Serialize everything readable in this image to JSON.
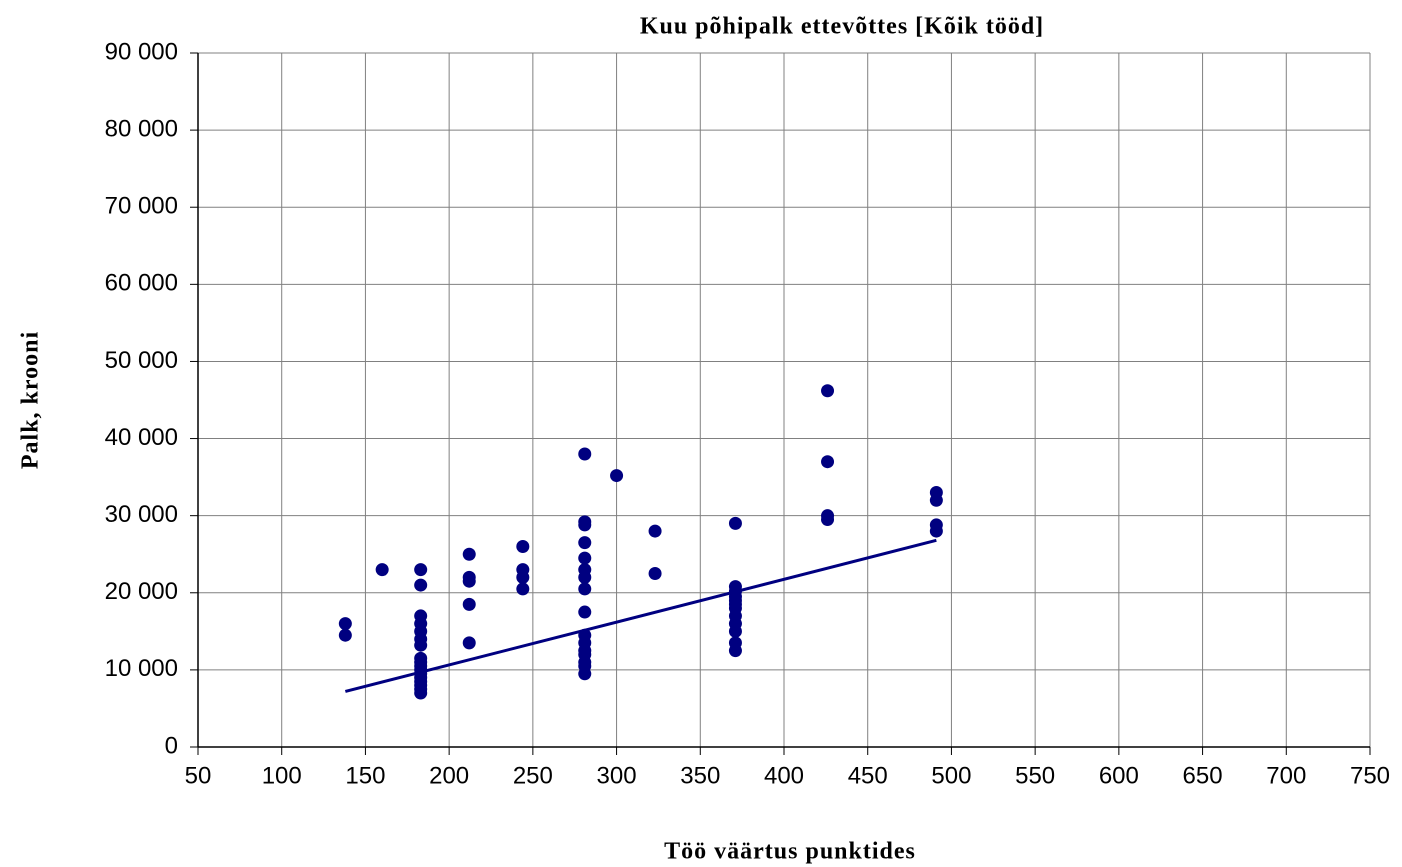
{
  "chart_data": {
    "type": "scatter",
    "title": "Kuu põhipalk ettevõttes [Kõik tööd]",
    "x_label": "Töö väärtus punktides",
    "y_label": "Palk, krooni",
    "color": "#000080",
    "x": [
      138,
      138,
      160,
      183,
      183,
      183,
      183,
      183,
      183,
      183,
      183,
      183,
      183,
      183,
      183,
      183,
      183,
      183,
      183,
      183,
      212,
      212,
      212,
      212,
      212,
      244,
      244,
      244,
      244,
      281,
      281,
      281,
      281,
      281,
      281,
      281,
      281,
      281,
      281,
      281,
      281,
      281,
      281,
      281,
      281,
      300,
      323,
      323,
      371,
      371,
      371,
      371,
      371,
      371,
      371,
      371,
      371,
      371,
      371,
      371,
      426,
      426,
      426,
      426,
      491,
      491,
      491,
      491
    ],
    "values": [
      16000,
      14500,
      23000,
      23000,
      21000,
      17000,
      16000,
      15000,
      14000,
      13200,
      11500,
      11000,
      10500,
      10000,
      9500,
      9000,
      8500,
      8000,
      7500,
      7000,
      25000,
      22000,
      21500,
      18500,
      13500,
      26000,
      23000,
      22000,
      20500,
      38000,
      29200,
      28800,
      26500,
      24500,
      23000,
      22000,
      20500,
      17500,
      14500,
      13500,
      12500,
      12000,
      11000,
      10500,
      9500,
      35200,
      28000,
      22500,
      29000,
      20800,
      20200,
      19500,
      19000,
      18500,
      18000,
      17000,
      16000,
      15000,
      13500,
      12500,
      46200,
      37000,
      30000,
      29500,
      33000,
      32000,
      28800,
      28000
    ],
    "trendline": {
      "x": [
        138,
        491
      ],
      "values": [
        7200,
        26800
      ],
      "color": "#000080"
    },
    "xlim": [
      50,
      750
    ],
    "xticks": [
      50,
      100,
      150,
      200,
      250,
      300,
      350,
      400,
      450,
      500,
      550,
      600,
      650,
      700,
      750
    ],
    "ylim": [
      0,
      90000
    ],
    "yticks": [
      0,
      {
        "value": 10000,
        "label": "10 000"
      },
      {
        "value": 20000,
        "label": "20 000"
      },
      {
        "value": 30000,
        "label": "30 000"
      },
      {
        "value": 40000,
        "label": "40 000"
      },
      {
        "value": 50000,
        "label": "50 000"
      },
      {
        "value": 60000,
        "label": "60 000"
      },
      {
        "value": 70000,
        "label": "70 000"
      },
      {
        "value": 80000,
        "label": "80 000"
      },
      {
        "value": 90000,
        "label": "90 000"
      }
    ],
    "grid": true
  }
}
